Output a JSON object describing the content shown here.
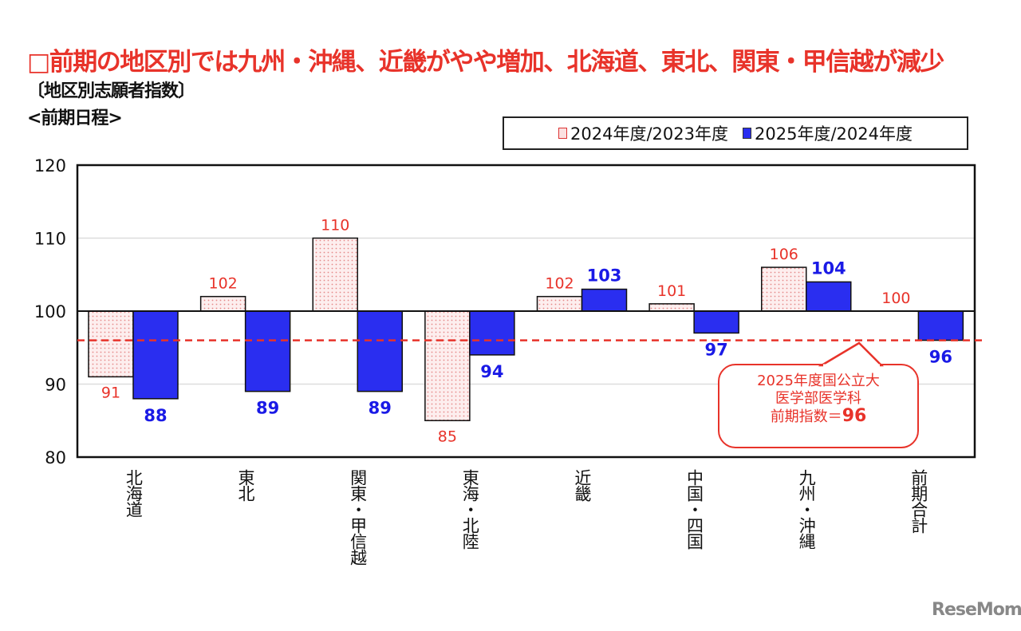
{
  "header": {
    "title": "□前期の地区別では九州・沖縄、近畿がやや増加、北海道、東北、関東・甲信越が減少",
    "subtitle": "〔地区別志願者指数〕",
    "schedule": "<前期日程>"
  },
  "callout": {
    "line1": "2025年度国公立大",
    "line2": "医学部医学科",
    "line3_prefix": "前期指数＝",
    "line3_value": "96"
  },
  "watermark": "ReseMom",
  "chart_data": {
    "type": "bar",
    "categories": [
      "北海道",
      "東北",
      "関東・甲信越",
      "東海・北陸",
      "近畿",
      "中国・四国",
      "九州・沖縄",
      "前期合計"
    ],
    "series": [
      {
        "name": "2024年度/2023年度",
        "values": [
          91,
          102,
          110,
          85,
          102,
          101,
          106,
          100
        ],
        "color": "#fbe0e0",
        "label_color": "#e8332a"
      },
      {
        "name": "2025年度/2024年度",
        "values": [
          88,
          89,
          89,
          94,
          103,
          97,
          104,
          96
        ],
        "color": "#2a2ef0",
        "label_color": "#1a1ae6"
      }
    ],
    "baseline": 100,
    "reference_line": 96,
    "reference_color": "#e8332a",
    "ylim": [
      80,
      120
    ],
    "yticks": [
      80,
      90,
      100,
      110,
      120
    ],
    "grid": true,
    "legend_position": "top-right"
  }
}
